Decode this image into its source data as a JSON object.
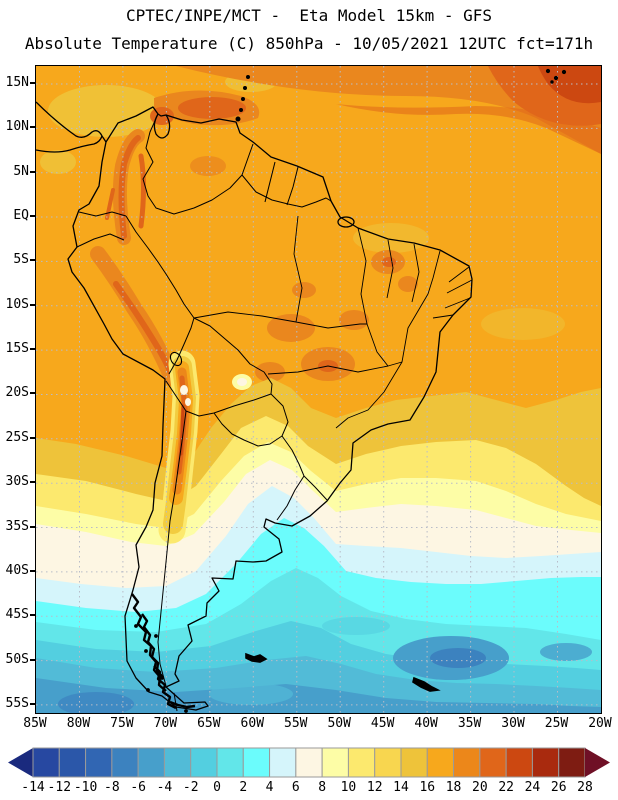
{
  "header": {
    "line1": "CPTEC/INPE/MCT -  Eta Model 15km - GFS",
    "line2": "Absolute Temperature (C) 850hPa - 10/05/2021 12UTC fct=171h"
  },
  "map": {
    "lat_labels": [
      "15N",
      "10N",
      "5N",
      "EQ",
      "5S",
      "10S",
      "15S",
      "20S",
      "25S",
      "30S",
      "35S",
      "40S",
      "45S",
      "50S",
      "55S"
    ],
    "lon_labels": [
      "85W",
      "80W",
      "75W",
      "70W",
      "65W",
      "60W",
      "55W",
      "50W",
      "45W",
      "40W",
      "35W",
      "30W",
      "25W",
      "20W"
    ],
    "grid_color": "#b8bcc8"
  },
  "colorbar": {
    "tick_values": [
      -14,
      -12,
      -10,
      -8,
      -6,
      -4,
      -2,
      0,
      2,
      4,
      6,
      8,
      10,
      12,
      14,
      16,
      18,
      20,
      22,
      24,
      26,
      28
    ],
    "cell_colors": [
      "#2748a1",
      "#2b57a9",
      "#3166b3",
      "#3c82bf",
      "#479fcb",
      "#52bbd7",
      "#53cfe0",
      "#62e6e9",
      "#6bfcfc",
      "#d5f5fb",
      "#fdf6e3",
      "#fdfda6",
      "#fce96e",
      "#f8d64f",
      "#eec33a",
      "#f7a81c",
      "#ec871a",
      "#e0661a",
      "#cc4811",
      "#a92a0e",
      "#7e1c12"
    ],
    "under_arrow_color": "#1a2a7e",
    "over_arrow_color": "#6f1026",
    "border_color": "#9a9a9a"
  }
}
